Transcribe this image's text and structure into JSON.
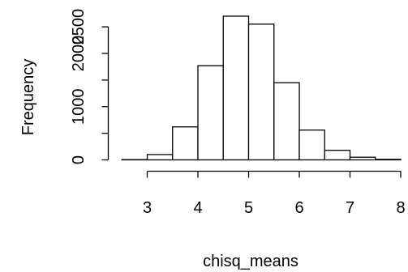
{
  "chart_data": {
    "type": "bar",
    "title": "",
    "xlabel": "chisq_means",
    "ylabel": "Frequency",
    "bins": [
      {
        "from": 2.5,
        "to": 3.0,
        "count": 5
      },
      {
        "from": 3.0,
        "to": 3.5,
        "count": 100
      },
      {
        "from": 3.5,
        "to": 4.0,
        "count": 620
      },
      {
        "from": 4.0,
        "to": 4.5,
        "count": 1770
      },
      {
        "from": 4.5,
        "to": 5.0,
        "count": 2700
      },
      {
        "from": 5.0,
        "to": 5.5,
        "count": 2550
      },
      {
        "from": 5.5,
        "to": 6.0,
        "count": 1450
      },
      {
        "from": 6.0,
        "to": 6.5,
        "count": 560
      },
      {
        "from": 6.5,
        "to": 7.0,
        "count": 180
      },
      {
        "from": 7.0,
        "to": 7.5,
        "count": 50
      },
      {
        "from": 7.5,
        "to": 8.0,
        "count": 10
      }
    ],
    "xticks": [
      "3",
      "4",
      "5",
      "6",
      "7",
      "8"
    ],
    "yticks": [
      "0",
      "1000",
      "2000",
      "2500"
    ],
    "xlim": [
      2.5,
      8.0
    ],
    "ylim": [
      0,
      2700
    ],
    "grid": false,
    "legend": "none"
  }
}
